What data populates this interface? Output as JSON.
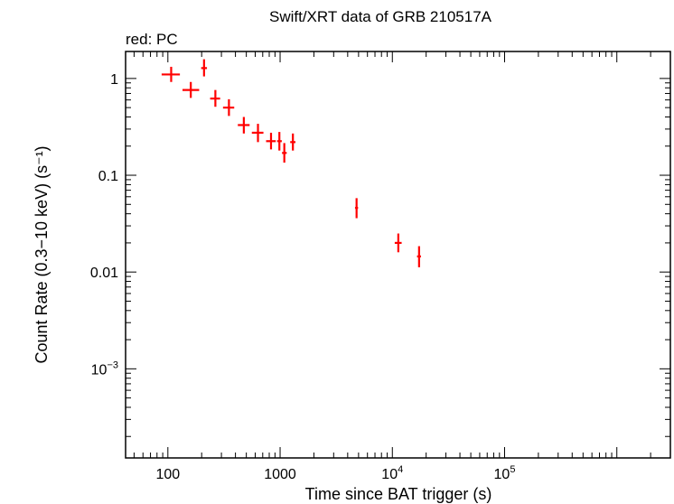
{
  "chart_data": {
    "type": "scatter",
    "title": "Swift/XRT data of GRB 210517A",
    "subtitle": "red: PC",
    "xlabel": "Time since BAT trigger (s)",
    "ylabel": "Count Rate (0.3−10 keV) (s⁻¹)",
    "xscale": "log",
    "yscale": "log",
    "xlim": [
      42,
      3000000
    ],
    "ylim": [
      0.00012,
      1.9
    ],
    "x_ticks": [
      {
        "value": 100,
        "label": "100"
      },
      {
        "value": 1000,
        "label": "1000"
      },
      {
        "value": 10000,
        "base": "10",
        "exp": "4"
      },
      {
        "value": 100000,
        "base": "10",
        "exp": "5"
      }
    ],
    "y_ticks": [
      {
        "value": 1,
        "label": "1"
      },
      {
        "value": 0.1,
        "label": "0.1"
      },
      {
        "value": 0.01,
        "label": "0.01"
      },
      {
        "value": 0.001,
        "base": "10",
        "exp": "−3"
      }
    ],
    "grid": false,
    "series": [
      {
        "color": "#ff0000",
        "points": [
          {
            "x": 107,
            "xlo": 88,
            "xhi": 128,
            "y": 1.1,
            "ylo": 0.92,
            "yhi": 1.32
          },
          {
            "x": 160,
            "xlo": 135,
            "xhi": 190,
            "y": 0.76,
            "ylo": 0.63,
            "yhi": 0.92
          },
          {
            "x": 210,
            "xlo": 198,
            "xhi": 223,
            "y": 1.28,
            "ylo": 1.05,
            "yhi": 1.58
          },
          {
            "x": 265,
            "xlo": 238,
            "xhi": 292,
            "y": 0.62,
            "ylo": 0.51,
            "yhi": 0.76
          },
          {
            "x": 350,
            "xlo": 310,
            "xhi": 390,
            "y": 0.5,
            "ylo": 0.41,
            "yhi": 0.61
          },
          {
            "x": 475,
            "xlo": 420,
            "xhi": 535,
            "y": 0.33,
            "ylo": 0.27,
            "yhi": 0.4
          },
          {
            "x": 635,
            "xlo": 560,
            "xhi": 710,
            "y": 0.275,
            "ylo": 0.22,
            "yhi": 0.34
          },
          {
            "x": 830,
            "xlo": 750,
            "xhi": 915,
            "y": 0.225,
            "ylo": 0.185,
            "yhi": 0.275
          },
          {
            "x": 985,
            "xlo": 940,
            "xhi": 1035,
            "y": 0.225,
            "ylo": 0.18,
            "yhi": 0.28
          },
          {
            "x": 1090,
            "xlo": 1040,
            "xhi": 1145,
            "y": 0.17,
            "ylo": 0.135,
            "yhi": 0.215
          },
          {
            "x": 1300,
            "xlo": 1230,
            "xhi": 1370,
            "y": 0.22,
            "ylo": 0.18,
            "yhi": 0.27
          },
          {
            "x": 4800,
            "xlo": 4650,
            "xhi": 4950,
            "y": 0.046,
            "ylo": 0.036,
            "yhi": 0.058
          },
          {
            "x": 11300,
            "xlo": 10500,
            "xhi": 12100,
            "y": 0.02,
            "ylo": 0.016,
            "yhi": 0.025
          },
          {
            "x": 17300,
            "xlo": 16600,
            "xhi": 18000,
            "y": 0.0145,
            "ylo": 0.0112,
            "yhi": 0.0185
          }
        ]
      }
    ]
  }
}
